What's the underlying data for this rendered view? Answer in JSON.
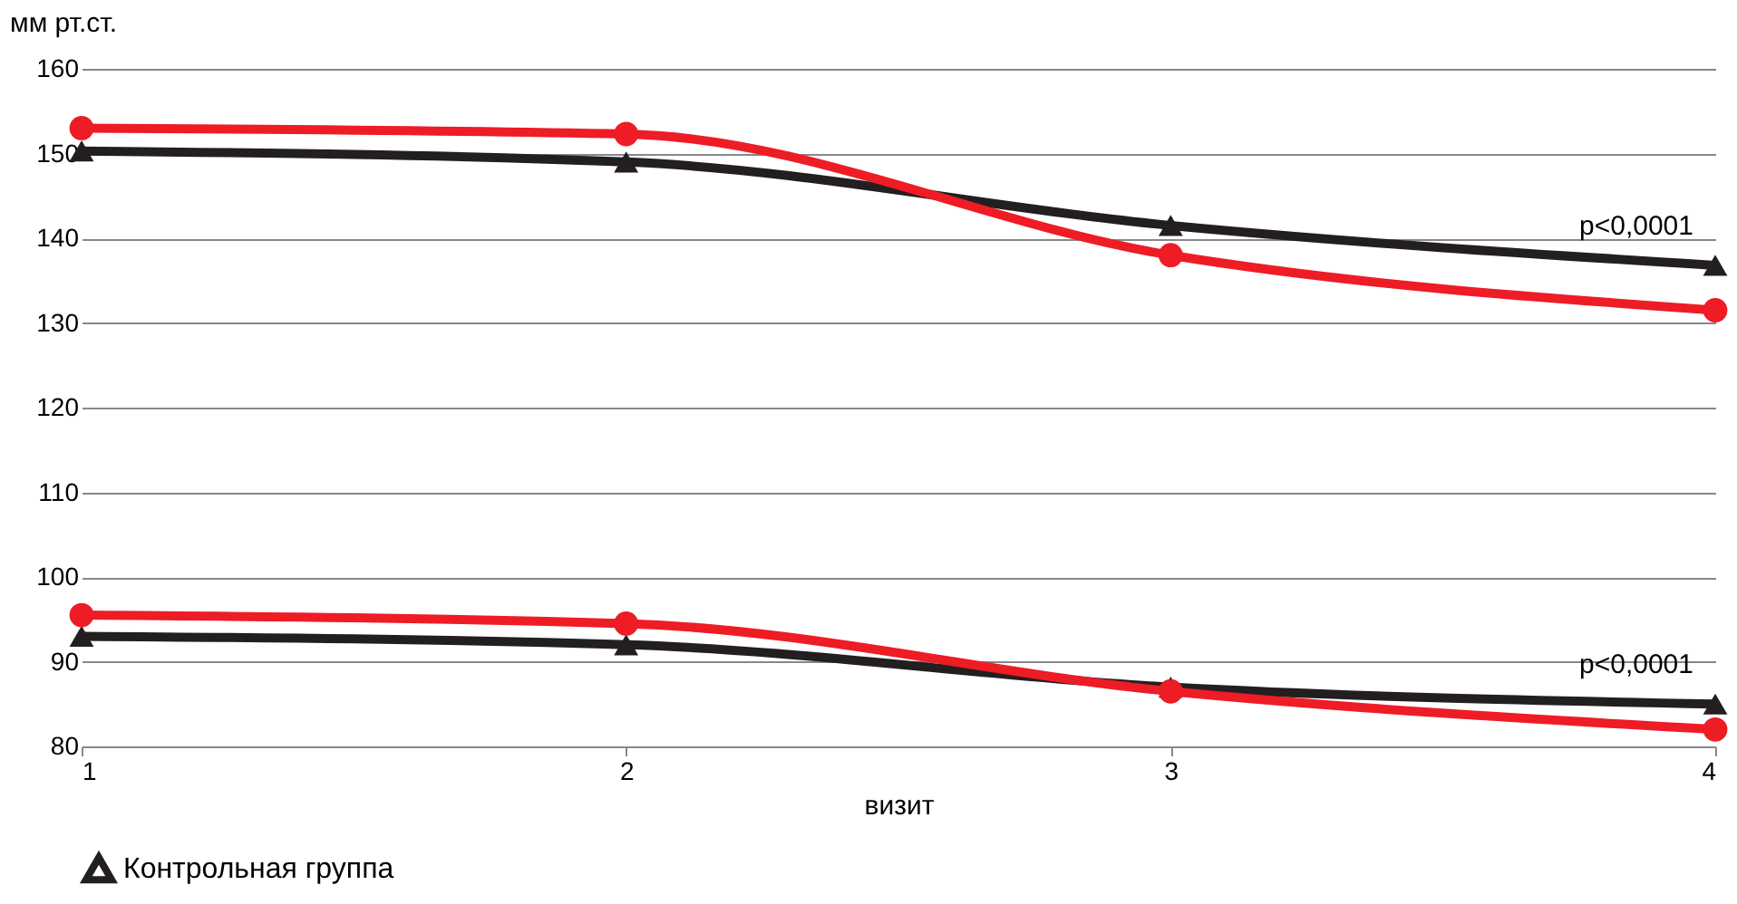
{
  "chart_data": {
    "type": "line",
    "xlabel": "визит",
    "ylabel": "мм рт.ст.",
    "x": [
      1,
      2,
      3,
      4
    ],
    "xlim": [
      1,
      4
    ],
    "xticks": [
      1,
      2,
      3,
      4
    ],
    "ylim": [
      80,
      160
    ],
    "yticks": [
      80,
      90,
      100,
      110,
      120,
      130,
      140,
      150,
      160
    ],
    "grid": "y",
    "legend": "bottom",
    "line_style": "solid",
    "series": [
      {
        "name": "Контрольная группа",
        "color": "#231f20",
        "marker": "triangle",
        "values": [
          150.3,
          149,
          141.5,
          136.8
        ]
      },
      {
        "color": "#ee1c25",
        "marker": "circle",
        "values": [
          153,
          152.3,
          138,
          131.5
        ]
      },
      {
        "color": "#231f20",
        "marker": "triangle",
        "values": [
          93,
          92,
          87,
          85
        ]
      },
      {
        "color": "#ee1c25",
        "marker": "circle",
        "values": [
          95.5,
          94.5,
          86.5,
          82
        ]
      }
    ],
    "annotations": [
      "p<0,0001",
      "p<0,0001"
    ]
  }
}
